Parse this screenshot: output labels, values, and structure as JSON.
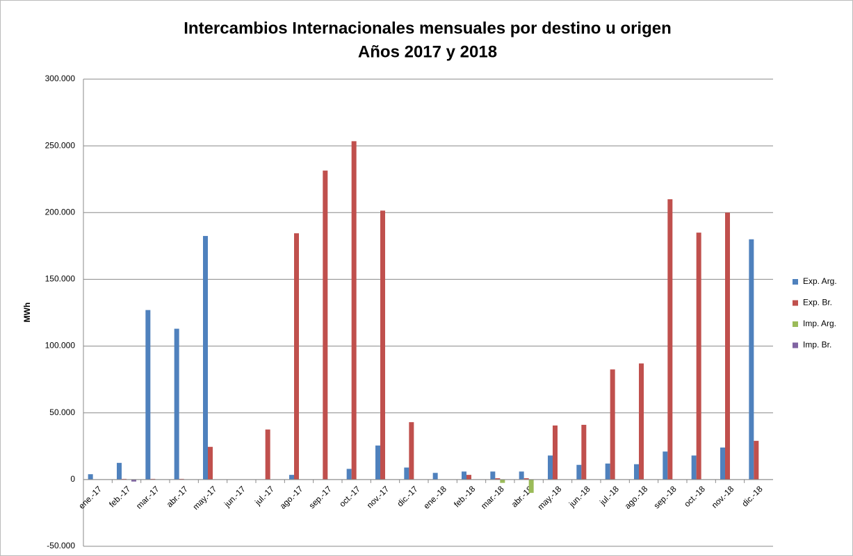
{
  "chart_data": {
    "type": "bar",
    "title": "Intercambios  Internacionales mensuales por destino u origen",
    "subtitle": "Años 2017 y 2018",
    "y_label": "MWh",
    "categories": [
      "ene.-17",
      "feb.-17",
      "mar.-17",
      "abr.-17",
      "may.-17",
      "jun.-17",
      "jul.-17",
      "ago.-17",
      "sep.-17",
      "oct.-17",
      "nov.-17",
      "dic.-17",
      "ene.-18",
      "feb.-18",
      "mar.-18",
      "abr.-18",
      "may.-18",
      "jun.-18",
      "jul.-18",
      "ago.-18",
      "sep.-18",
      "oct.-18",
      "nov.-18",
      "dic.-18"
    ],
    "series": [
      {
        "name": "Exp. Arg.",
        "color": "#4f81bd",
        "values": [
          4000,
          12500,
          127000,
          113000,
          182500,
          0,
          0,
          3500,
          0,
          8000,
          25500,
          9000,
          5000,
          6000,
          6000,
          6000,
          18000,
          11000,
          12000,
          11500,
          21000,
          18000,
          24000,
          180000
        ]
      },
      {
        "name": "Exp. Br.",
        "color": "#c0504d",
        "values": [
          0,
          500,
          500,
          500,
          24500,
          0,
          37500,
          184500,
          231500,
          253500,
          201500,
          43000,
          0,
          3500,
          1000,
          1000,
          40500,
          41000,
          82500,
          87000,
          210000,
          185000,
          200000,
          29000
        ]
      },
      {
        "name": "Imp. Arg.",
        "color": "#9bbb59",
        "values": [
          0,
          0,
          0,
          0,
          0,
          0,
          0,
          0,
          0,
          0,
          0,
          0,
          0,
          0,
          -2500,
          -10000,
          0,
          0,
          0,
          0,
          0,
          0,
          0,
          0
        ]
      },
      {
        "name": "Imp. Br.",
        "color": "#8064a2",
        "values": [
          0,
          -1500,
          0,
          0,
          0,
          0,
          0,
          0,
          0,
          0,
          0,
          0,
          0,
          0,
          0,
          0,
          0,
          0,
          0,
          0,
          0,
          0,
          0,
          0
        ]
      }
    ],
    "ylim": [
      -50000,
      300000
    ],
    "yticks": [
      {
        "value": -50000,
        "label": "-50.000"
      },
      0,
      {
        "value": 50000,
        "label": "50.000"
      },
      {
        "value": 100000,
        "label": "100.000"
      },
      {
        "value": 150000,
        "label": "150.000"
      },
      {
        "value": 200000,
        "label": "200.000"
      },
      {
        "value": 250000,
        "label": "250.000"
      },
      {
        "value": 300000,
        "label": "300.000"
      }
    ],
    "grid": true,
    "legend": "right"
  }
}
